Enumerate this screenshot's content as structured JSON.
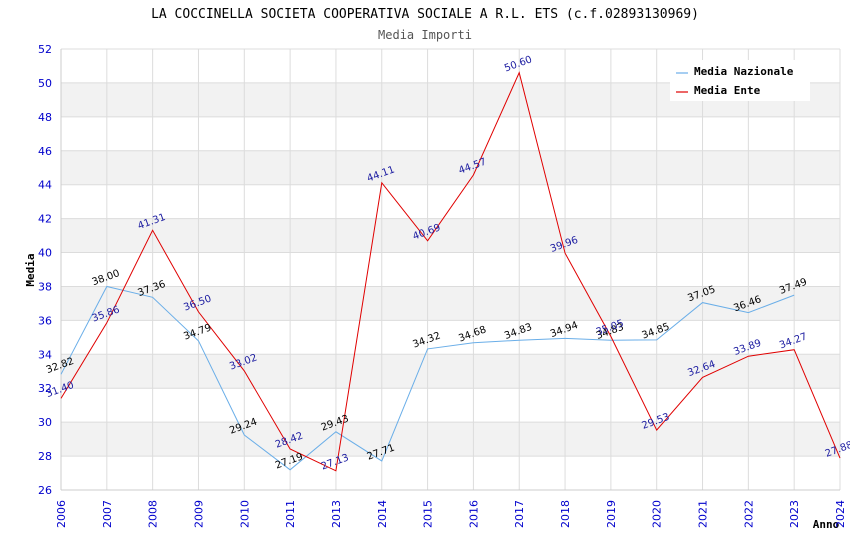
{
  "chart_data": {
    "type": "line",
    "title": "LA COCCINELLA SOCIETA COOPERATIVA SOCIALE A R.L. ETS (c.f.02893130969)",
    "subtitle": "Media Importi",
    "xlabel": "Anno",
    "ylabel": "Media",
    "ylim": [
      26,
      52
    ],
    "yticks": [
      26,
      28,
      30,
      32,
      34,
      36,
      38,
      40,
      42,
      44,
      46,
      48,
      50,
      52
    ],
    "categories": [
      "2006",
      "2007",
      "2008",
      "2009",
      "2010",
      "2011",
      "2013",
      "2014",
      "2015",
      "2016",
      "2017",
      "2018",
      "2019",
      "2020",
      "2021",
      "2022",
      "2023",
      "2024"
    ],
    "legend_position": "top-right",
    "series": [
      {
        "name": "Media Nazionale",
        "color": "#6aaee8",
        "values": [
          32.82,
          38.0,
          37.36,
          34.79,
          29.24,
          27.19,
          29.43,
          27.71,
          34.32,
          34.68,
          34.83,
          34.94,
          34.83,
          34.85,
          37.05,
          36.46,
          37.49,
          null
        ],
        "labels": [
          "32.82",
          "38.00",
          "37.36",
          "34.79",
          "29.24",
          "27.19",
          "29.43",
          "27.71",
          "34.32",
          "34.68",
          "34.83",
          "34.94",
          "34.83",
          "34.85",
          "37.05",
          "36.46",
          "37.49",
          null
        ]
      },
      {
        "name": "Media Ente",
        "color": "#e00000",
        "values": [
          31.4,
          35.86,
          41.31,
          36.5,
          33.02,
          28.42,
          27.13,
          44.11,
          40.69,
          44.57,
          50.6,
          39.96,
          35.05,
          29.53,
          32.64,
          33.89,
          34.27,
          27.88
        ],
        "labels": [
          "31.40",
          "35.86",
          "41.31",
          "36.50",
          "33.02",
          "28.42",
          "27.13",
          "44.11",
          "40.69",
          "44.57",
          "50.60",
          "39.96",
          "35.05",
          "29.53",
          "32.64",
          "33.89",
          "34.27",
          "27.88"
        ]
      }
    ]
  }
}
